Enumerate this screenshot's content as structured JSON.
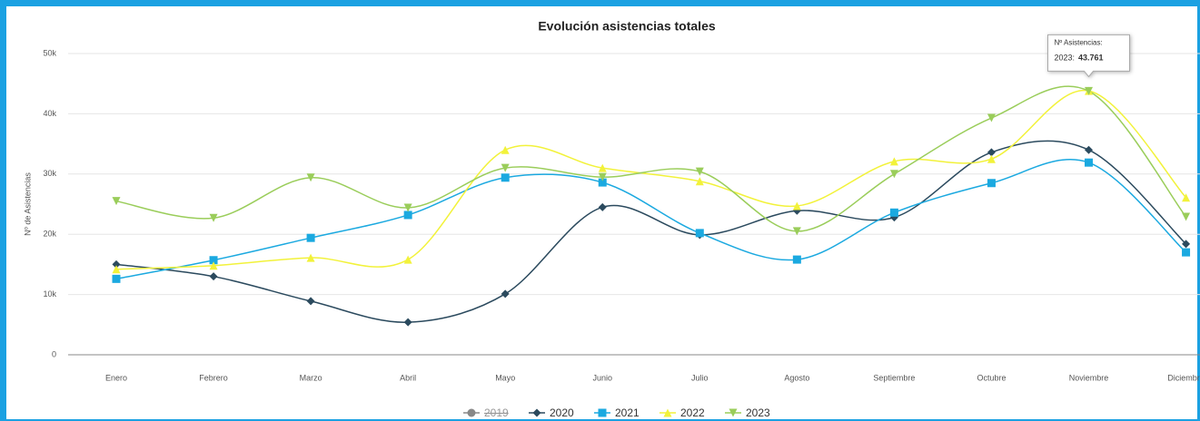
{
  "chart_data": {
    "type": "line",
    "title": "Evolución asistencias totales",
    "y_label": "Nº de Asistencias",
    "categories": [
      "Enero",
      "Febrero",
      "Marzo",
      "Abril",
      "Mayo",
      "Junio",
      "Julio",
      "Agosto",
      "Septiembre",
      "Octubre",
      "Noviembre",
      "Diciembre"
    ],
    "ylim": [
      0,
      50000
    ],
    "yticks": [
      0,
      {
        "value": 10000,
        "label": "10k"
      },
      {
        "value": 20000,
        "label": "20k"
      },
      {
        "value": 30000,
        "label": "30k"
      },
      {
        "value": 40000,
        "label": "40k"
      },
      {
        "value": 50000,
        "label": "50k"
      }
    ],
    "grid": true,
    "smooth": true,
    "legend": "bottom",
    "series": [
      {
        "name": "2019",
        "color": "#555555",
        "marker": "circle",
        "visible": false,
        "values": [
          null,
          null,
          null,
          null,
          null,
          null,
          null,
          null,
          null,
          null,
          null,
          null
        ]
      },
      {
        "name": "2020",
        "color": "#2b4a5e",
        "marker": "diamond",
        "visible": true,
        "values": [
          15000,
          13000,
          8900,
          5400,
          10100,
          24500,
          19900,
          23900,
          22800,
          33600,
          34000,
          18400
        ]
      },
      {
        "name": "2021",
        "color": "#1ba9e0",
        "marker": "square",
        "visible": true,
        "values": [
          12600,
          15700,
          19400,
          23200,
          29400,
          28600,
          20200,
          15800,
          23600,
          28500,
          31900,
          17000
        ]
      },
      {
        "name": "2022",
        "color": "#f2f23a",
        "marker": "triangle",
        "visible": true,
        "values": [
          14200,
          14800,
          16100,
          15800,
          34000,
          31000,
          28800,
          24700,
          32100,
          32500,
          43800,
          26100
        ]
      },
      {
        "name": "2023",
        "color": "#9acd5a",
        "marker": "triangle-down",
        "visible": true,
        "values": [
          25500,
          22700,
          29400,
          24400,
          31000,
          29500,
          30400,
          20500,
          30000,
          39300,
          43761,
          22900
        ]
      }
    ],
    "tooltip": {
      "header": "Nº Asistencias:",
      "series_label": "2023:",
      "value_label": "43.761",
      "series": 4,
      "index": 10
    }
  }
}
